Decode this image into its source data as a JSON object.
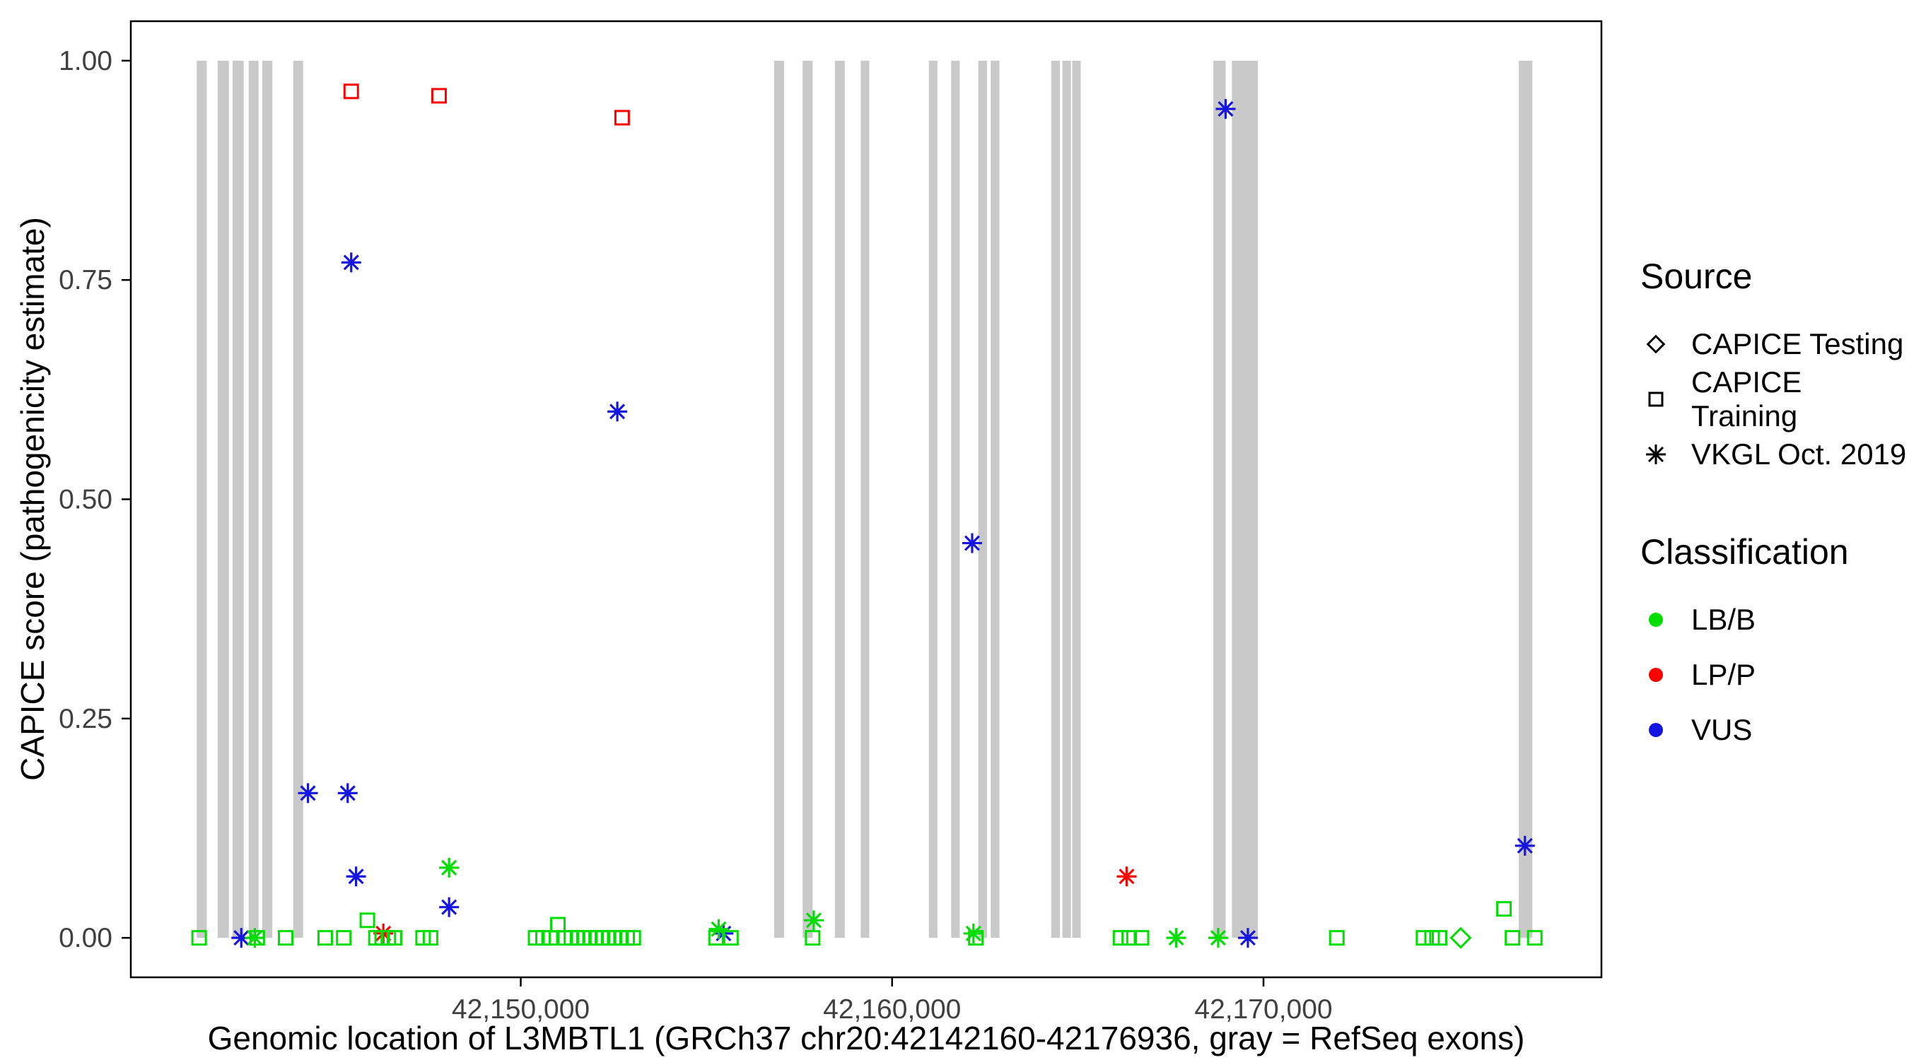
{
  "chart_data": {
    "type": "scatter",
    "title": "",
    "xlabel": "Genomic location of L3MBTL1 (GRCh37 chr20:42142160-42176936, gray = RefSeq exons)",
    "ylabel": "CAPICE score (pathogenicity estimate)",
    "x_range": [
      42139500,
      42179100
    ],
    "y_range": [
      -0.045,
      1.045
    ],
    "x_ticks": [
      {
        "value": 42150000,
        "label": "42,150,000"
      },
      {
        "value": 42160000,
        "label": "42,160,000"
      },
      {
        "value": 42170000,
        "label": "42,170,000"
      }
    ],
    "y_ticks": [
      {
        "value": 0.0,
        "label": "0.00"
      },
      {
        "value": 0.25,
        "label": "0.25"
      },
      {
        "value": 0.5,
        "label": "0.50"
      },
      {
        "value": 0.75,
        "label": "0.75"
      },
      {
        "value": 1.0,
        "label": "1.00"
      }
    ],
    "grid": false,
    "legend_position": "right",
    "exon_color": "#c9c9c9",
    "colors": {
      "lbb": "#00dd00",
      "lpp": "#ff0000",
      "vus": "#1515e0"
    },
    "exons": [
      [
        42141275,
        42141545
      ],
      [
        42141840,
        42142140
      ],
      [
        42142240,
        42142540
      ],
      [
        42142675,
        42142940
      ],
      [
        42143040,
        42143310
      ],
      [
        42143875,
        42144140
      ],
      [
        42156825,
        42157090
      ],
      [
        42157590,
        42157860
      ],
      [
        42158460,
        42158725
      ],
      [
        42159155,
        42159355
      ],
      [
        42160990,
        42161220
      ],
      [
        42161590,
        42161820
      ],
      [
        42162320,
        42162555
      ],
      [
        42162655,
        42162890
      ],
      [
        42164285,
        42164520
      ],
      [
        42164585,
        42164785
      ],
      [
        42164850,
        42165050
      ],
      [
        42168650,
        42168980
      ],
      [
        42169150,
        42169850
      ],
      [
        42176875,
        42177240
      ]
    ],
    "points": [
      [
        42145435,
        0.965,
        "training",
        "lpp"
      ],
      [
        42147800,
        0.96,
        "training",
        "lpp"
      ],
      [
        42152730,
        0.935,
        "training",
        "lpp"
      ],
      [
        42142475,
        0.0,
        "vkgl",
        "vus"
      ],
      [
        42144270,
        0.165,
        "vkgl",
        "vus"
      ],
      [
        42145340,
        0.165,
        "vkgl",
        "vus"
      ],
      [
        42145435,
        0.77,
        "vkgl",
        "vus"
      ],
      [
        42145565,
        0.07,
        "vkgl",
        "vus"
      ],
      [
        42148070,
        0.035,
        "vkgl",
        "vus"
      ],
      [
        42152600,
        0.6,
        "vkgl",
        "vus"
      ],
      [
        42155460,
        0.005,
        "vkgl",
        "vus"
      ],
      [
        42162155,
        0.45,
        "vkgl",
        "vus"
      ],
      [
        42168980,
        0.945,
        "vkgl",
        "vus"
      ],
      [
        42169580,
        0.0,
        "vkgl",
        "vus"
      ],
      [
        42177040,
        0.105,
        "vkgl",
        "vus"
      ],
      [
        42142840,
        0.0,
        "vkgl",
        "lbb"
      ],
      [
        42148070,
        0.08,
        "vkgl",
        "lbb"
      ],
      [
        42155330,
        0.01,
        "vkgl",
        "lbb"
      ],
      [
        42157890,
        0.02,
        "vkgl",
        "lbb"
      ],
      [
        42162190,
        0.005,
        "vkgl",
        "lbb"
      ],
      [
        42167650,
        0.0,
        "vkgl",
        "lbb"
      ],
      [
        42168780,
        0.0,
        "vkgl",
        "lbb"
      ],
      [
        42146300,
        0.005,
        "vkgl",
        "lpp"
      ],
      [
        42166315,
        0.07,
        "vkgl",
        "lpp"
      ],
      [
        42141340,
        0.0,
        "training",
        "lbb"
      ],
      [
        42142905,
        0.0,
        "training",
        "lbb"
      ],
      [
        42143670,
        0.0,
        "training",
        "lbb"
      ],
      [
        42144735,
        0.0,
        "training",
        "lbb"
      ],
      [
        42145235,
        0.0,
        "training",
        "lbb"
      ],
      [
        42145870,
        0.02,
        "training",
        "lbb"
      ],
      [
        42146100,
        0.0,
        "training",
        "lbb"
      ],
      [
        42146270,
        0.0,
        "training",
        "lbb"
      ],
      [
        42146435,
        0.0,
        "training",
        "lbb"
      ],
      [
        42146600,
        0.0,
        "training",
        "lbb"
      ],
      [
        42147370,
        0.0,
        "training",
        "lbb"
      ],
      [
        42147570,
        0.0,
        "training",
        "lbb"
      ],
      [
        42150400,
        0.0,
        "training",
        "lbb"
      ],
      [
        42150600,
        0.0,
        "training",
        "lbb"
      ],
      [
        42150800,
        0.0,
        "training",
        "lbb"
      ],
      [
        42151000,
        0.015,
        "training",
        "lbb"
      ],
      [
        42151200,
        0.0,
        "training",
        "lbb"
      ],
      [
        42151365,
        0.0,
        "training",
        "lbb"
      ],
      [
        42151530,
        0.0,
        "training",
        "lbb"
      ],
      [
        42151700,
        0.0,
        "training",
        "lbb"
      ],
      [
        42151865,
        0.0,
        "training",
        "lbb"
      ],
      [
        42152030,
        0.0,
        "training",
        "lbb"
      ],
      [
        42152200,
        0.0,
        "training",
        "lbb"
      ],
      [
        42152365,
        0.0,
        "training",
        "lbb"
      ],
      [
        42152530,
        0.0,
        "training",
        "lbb"
      ],
      [
        42152700,
        0.0,
        "training",
        "lbb"
      ],
      [
        42152865,
        0.0,
        "training",
        "lbb"
      ],
      [
        42153030,
        0.0,
        "training",
        "lbb"
      ],
      [
        42155260,
        0.0,
        "training",
        "lbb"
      ],
      [
        42155660,
        0.0,
        "training",
        "lbb"
      ],
      [
        42157860,
        0.0,
        "training",
        "lbb"
      ],
      [
        42162255,
        0.0,
        "training",
        "lbb"
      ],
      [
        42166150,
        0.0,
        "training",
        "lbb"
      ],
      [
        42166385,
        0.0,
        "training",
        "lbb"
      ],
      [
        42166715,
        0.0,
        "training",
        "lbb"
      ],
      [
        42171975,
        0.0,
        "training",
        "lbb"
      ],
      [
        42174310,
        0.0,
        "training",
        "lbb"
      ],
      [
        42174540,
        0.0,
        "training",
        "lbb"
      ],
      [
        42174740,
        0.0,
        "training",
        "lbb"
      ],
      [
        42176475,
        0.033,
        "training",
        "lbb"
      ],
      [
        42176705,
        0.0,
        "training",
        "lbb"
      ],
      [
        42177305,
        0.0,
        "training",
        "lbb"
      ],
      [
        42175310,
        0.0,
        "testing",
        "lbb"
      ]
    ]
  },
  "legend": {
    "source": {
      "title": "Source",
      "items": [
        {
          "shape": "diamond",
          "label": "CAPICE Testing"
        },
        {
          "shape": "square",
          "label": "CAPICE Training"
        },
        {
          "shape": "asterisk",
          "label": "VKGL Oct. 2019"
        }
      ]
    },
    "classification": {
      "title": "Classification",
      "items": [
        {
          "key": "lbb",
          "label": "LB/B"
        },
        {
          "key": "lpp",
          "label": "LP/P"
        },
        {
          "key": "vus",
          "label": "VUS"
        }
      ]
    }
  }
}
